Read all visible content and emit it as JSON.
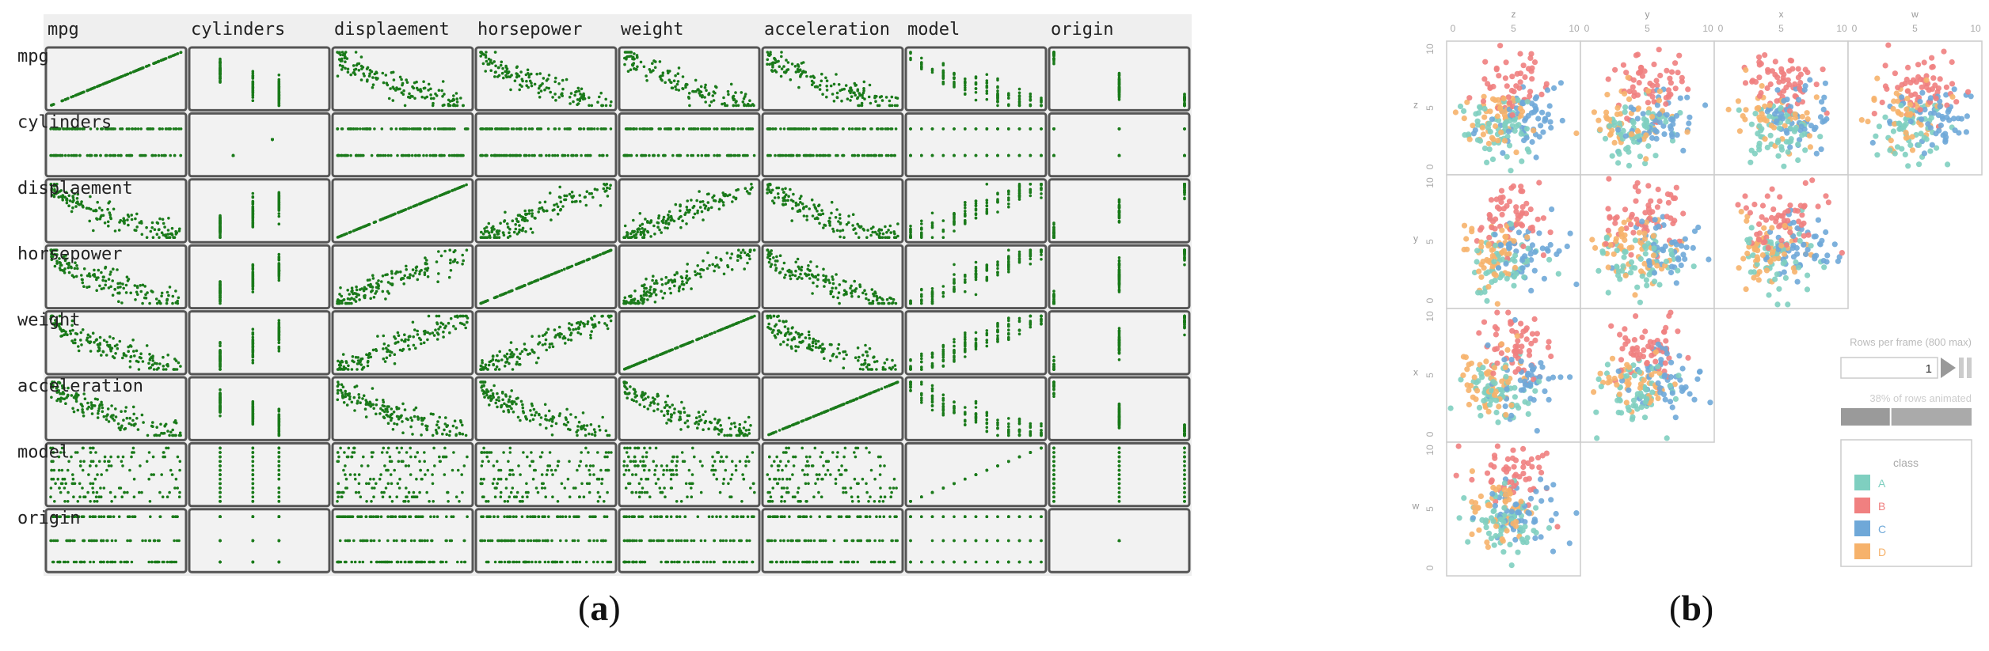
{
  "captions": {
    "a": "a",
    "b": "b"
  },
  "panel_a": {
    "variables": [
      "mpg",
      "cylinders",
      "displaement",
      "horsepower",
      "weight",
      "acceleration",
      "model",
      "origin"
    ],
    "point_color": "#1a7a1a"
  },
  "panel_b": {
    "variables": [
      "z",
      "y",
      "x",
      "w"
    ],
    "axis_ticks": [
      "0",
      "5",
      "10"
    ],
    "rows_label": "Rows per frame (800 max)",
    "rows_value": "1",
    "animated_label": "38% of rows animated",
    "animated_fraction": 0.38,
    "legend_title": "class",
    "classes": [
      {
        "name": "A",
        "color": "#7fcfc0"
      },
      {
        "name": "B",
        "color": "#f08080"
      },
      {
        "name": "C",
        "color": "#6fa8d8"
      },
      {
        "name": "D",
        "color": "#f6b26b"
      }
    ]
  },
  "chart_data": [
    {
      "type": "scatter",
      "variables": [
        "mpg",
        "cylinders",
        "displaement",
        "horsepower",
        "weight",
        "acceleration",
        "model",
        "origin"
      ],
      "layout": "scatterplot matrix, 8 x 8, diagonal shows each variable against itself"
    },
    {
      "type": "scatter",
      "variables": [
        "z",
        "y",
        "x",
        "w"
      ],
      "layout": "lower-triangular scatterplot matrix",
      "x_range": [
        0,
        10
      ],
      "y_range": [
        0,
        10
      ],
      "series": [
        {
          "name": "A"
        },
        {
          "name": "B"
        },
        {
          "name": "C"
        },
        {
          "name": "D"
        }
      ]
    }
  ]
}
